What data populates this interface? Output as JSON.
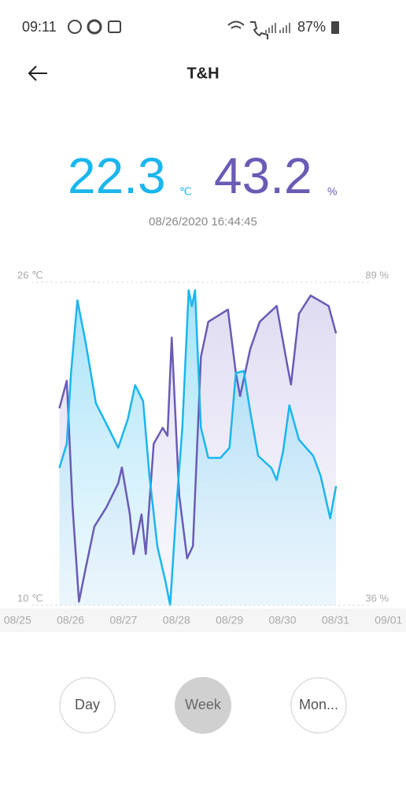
{
  "status_bar": {
    "time": "09:11",
    "battery": "87%"
  },
  "header": {
    "title": "T&H"
  },
  "reading": {
    "temperature": "22.3",
    "temperature_unit": "℃",
    "humidity": "43.2",
    "humidity_unit": "%",
    "timestamp": "08/26/2020 16:44:45"
  },
  "chart_data": {
    "type": "line",
    "xlim": [
      -0.33,
      7.33
    ],
    "xticks": [
      {
        "value": 0,
        "label": "08/25"
      },
      {
        "value": 1,
        "label": "08/26"
      },
      {
        "value": 2,
        "label": "08/27"
      },
      {
        "value": 3,
        "label": "08/28"
      },
      {
        "value": 4,
        "label": "08/29"
      },
      {
        "value": 5,
        "label": "08/30"
      },
      {
        "value": 6,
        "label": "08/31"
      },
      {
        "value": 7,
        "label": "09/01"
      }
    ],
    "ylim": [
      10,
      26
    ],
    "yticks": [
      {
        "value": 10,
        "label": "10 ℃"
      },
      {
        "value": 26,
        "label": "26 ℃"
      }
    ],
    "y2lim": [
      36,
      89
    ],
    "y2ticks": [
      {
        "value": 36,
        "label": "36 %"
      },
      {
        "value": 89,
        "label": "89 %"
      }
    ],
    "series": [
      {
        "color": "#1ab6ee",
        "x": [
          0.79,
          0.93,
          1.01,
          1.13,
          1.28,
          1.48,
          1.75,
          1.9,
          2.08,
          2.22,
          2.37,
          2.49,
          2.64,
          2.79,
          2.88,
          3.01,
          3.11,
          3.23,
          3.29,
          3.35,
          3.46,
          3.6,
          3.83,
          4.0,
          4.12,
          4.27,
          4.39,
          4.54,
          4.79,
          4.89,
          5.01,
          5.13,
          5.31,
          5.58,
          5.72,
          5.9,
          6.01
        ],
        "values": [
          16.8,
          18.0,
          21.5,
          25.1,
          23.1,
          20.0,
          18.6,
          17.8,
          19.2,
          20.9,
          20.1,
          16.4,
          12.9,
          11.2,
          10.0,
          15.3,
          18.8,
          25.6,
          24.8,
          25.6,
          18.8,
          17.3,
          17.3,
          17.8,
          21.5,
          21.6,
          19.6,
          17.4,
          16.8,
          16.2,
          17.6,
          19.9,
          18.2,
          17.4,
          16.4,
          14.3,
          15.9
        ]
      },
      {
        "color": "#6a5bb5",
        "axis": "y2",
        "x": [
          0.79,
          0.93,
          1.04,
          1.16,
          1.28,
          1.45,
          1.68,
          1.9,
          1.97,
          2.12,
          2.19,
          2.34,
          2.42,
          2.57,
          2.74,
          2.83,
          2.91,
          3.05,
          3.2,
          3.31,
          3.46,
          3.6,
          3.97,
          4.12,
          4.2,
          4.39,
          4.57,
          4.89,
          5.09,
          5.16,
          5.31,
          5.53,
          5.87,
          6.01
        ],
        "values": [
          68.3,
          72.8,
          52.1,
          36.6,
          41.8,
          48.9,
          52.1,
          56.0,
          58.6,
          50.9,
          44.4,
          50.9,
          44.4,
          62.5,
          65.1,
          63.8,
          79.9,
          54.1,
          43.7,
          45.7,
          76.7,
          82.5,
          84.5,
          74.1,
          70.3,
          78.0,
          82.5,
          85.1,
          75.4,
          72.2,
          83.8,
          86.8,
          85.1,
          80.6
        ]
      }
    ]
  },
  "buttons": [
    "Day",
    "Week",
    "Mon..."
  ]
}
